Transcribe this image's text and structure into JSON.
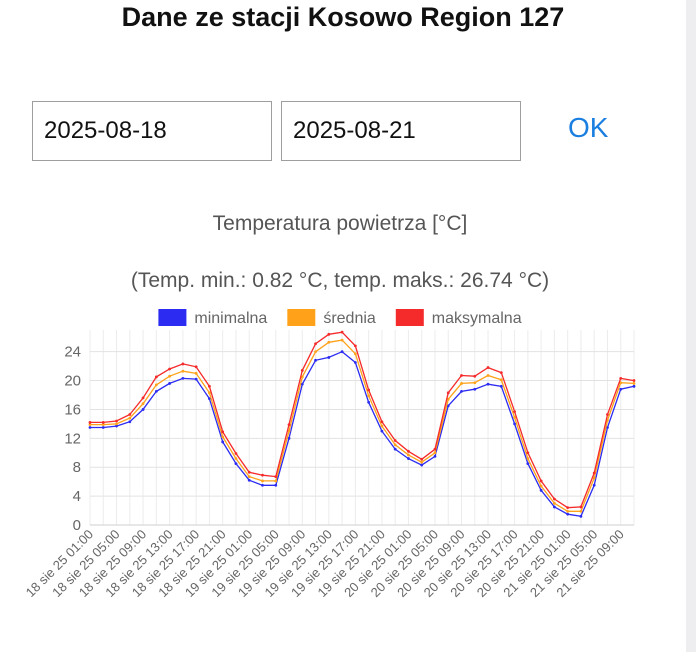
{
  "header": {
    "title": "Dane ze stacji Kosowo Region 127"
  },
  "form": {
    "date_from": "2025-08-18",
    "date_to": "2025-08-21",
    "ok_label": "OK"
  },
  "chart_data": {
    "type": "line",
    "title": "Temperatura powietrza [°C]",
    "subtitle": "(Temp. min.: 0.82 °C, temp. maks.: 26.74 °C)",
    "xlabel": "",
    "ylabel": "",
    "ylim": [
      0,
      27
    ],
    "yticks": [
      0,
      4,
      8,
      12,
      16,
      20,
      24
    ],
    "grid": true,
    "legend_position": "top",
    "x": [
      "18 sie 25 01:00",
      "18 sie 25 03:00",
      "18 sie 25 05:00",
      "18 sie 25 07:00",
      "18 sie 25 09:00",
      "18 sie 25 11:00",
      "18 sie 25 13:00",
      "18 sie 25 15:00",
      "18 sie 25 17:00",
      "18 sie 25 19:00",
      "18 sie 25 21:00",
      "18 sie 25 23:00",
      "19 sie 25 01:00",
      "19 sie 25 03:00",
      "19 sie 25 05:00",
      "19 sie 25 07:00",
      "19 sie 25 09:00",
      "19 sie 25 11:00",
      "19 sie 25 13:00",
      "19 sie 25 15:00",
      "19 sie 25 17:00",
      "19 sie 25 19:00",
      "19 sie 25 21:00",
      "19 sie 25 23:00",
      "20 sie 25 01:00",
      "20 sie 25 03:00",
      "20 sie 25 05:00",
      "20 sie 25 07:00",
      "20 sie 25 09:00",
      "20 sie 25 11:00",
      "20 sie 25 13:00",
      "20 sie 25 15:00",
      "20 sie 25 17:00",
      "20 sie 25 19:00",
      "20 sie 25 21:00",
      "20 sie 25 23:00",
      "21 sie 25 01:00",
      "21 sie 25 03:00",
      "21 sie 25 05:00",
      "21 sie 25 07:00",
      "21 sie 25 09:00",
      "21 sie 25 11:00"
    ],
    "tick_labels": [
      "18 sie 25 01:00",
      "18 sie 25 05:00",
      "18 sie 25 09:00",
      "18 sie 25 13:00",
      "18 sie 25 17:00",
      "18 sie 25 21:00",
      "19 sie 25 01:00",
      "19 sie 25 05:00",
      "19 sie 25 09:00",
      "19 sie 25 13:00",
      "19 sie 25 17:00",
      "19 sie 25 21:00",
      "20 sie 25 01:00",
      "20 sie 25 05:00",
      "20 sie 25 09:00",
      "20 sie 25 13:00",
      "20 sie 25 17:00",
      "20 sie 25 21:00",
      "21 sie 25 01:00",
      "21 sie 25 05:00",
      "21 sie 25 09:00"
    ],
    "series": [
      {
        "name": "minimalna",
        "color": "#2b2bf2",
        "values": [
          13.5,
          13.5,
          13.7,
          14.3,
          16.0,
          18.5,
          19.6,
          20.3,
          20.2,
          17.5,
          11.5,
          8.5,
          6.2,
          5.5,
          5.5,
          12.0,
          19.5,
          22.8,
          23.2,
          24.0,
          22.5,
          17.0,
          13.0,
          10.5,
          9.2,
          8.3,
          9.5,
          16.5,
          18.5,
          18.8,
          19.5,
          19.2,
          14.0,
          8.5,
          4.8,
          2.5,
          1.5,
          1.2,
          5.5,
          13.5,
          18.8,
          19.2
        ]
      },
      {
        "name": "średnia",
        "color": "#ffa21a",
        "values": [
          13.9,
          13.9,
          14.0,
          14.8,
          16.8,
          19.4,
          20.6,
          21.3,
          21.0,
          18.3,
          12.2,
          9.2,
          6.7,
          6.1,
          6.1,
          13.0,
          20.5,
          24.0,
          25.3,
          25.6,
          23.7,
          17.9,
          13.7,
          11.1,
          9.7,
          8.7,
          10.0,
          17.4,
          19.6,
          19.7,
          20.7,
          20.1,
          14.9,
          9.2,
          5.4,
          3.0,
          1.9,
          1.9,
          6.5,
          14.5,
          19.7,
          19.6
        ]
      },
      {
        "name": "maksymalna",
        "color": "#f52a2a",
        "values": [
          14.2,
          14.2,
          14.4,
          15.3,
          17.6,
          20.5,
          21.6,
          22.3,
          21.9,
          19.2,
          12.9,
          9.9,
          7.3,
          6.9,
          6.7,
          13.9,
          21.4,
          25.1,
          26.4,
          26.7,
          24.8,
          18.7,
          14.3,
          11.7,
          10.2,
          9.1,
          10.5,
          18.3,
          20.7,
          20.6,
          21.8,
          21.1,
          15.7,
          10.0,
          6.1,
          3.6,
          2.4,
          2.5,
          7.2,
          15.3,
          20.3,
          20.0
        ]
      }
    ]
  }
}
